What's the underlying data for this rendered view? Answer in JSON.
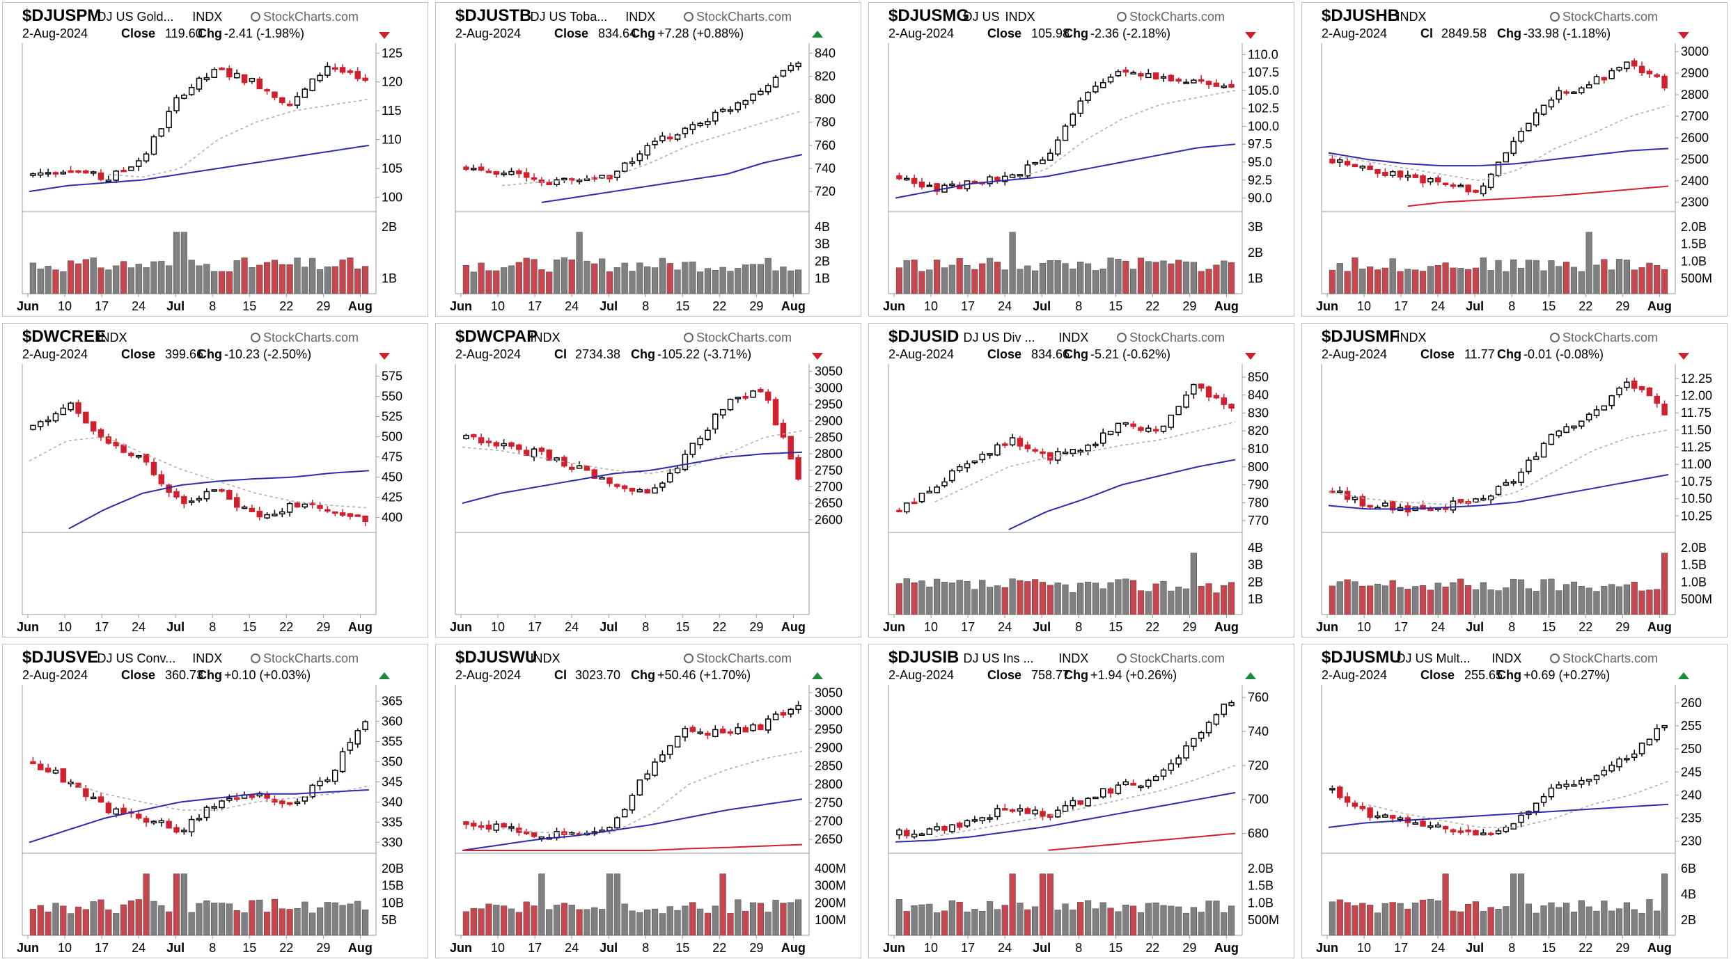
{
  "source_label": "StockCharts.com",
  "x_tick_labels": [
    "Jun",
    "10",
    "17",
    "24",
    "Jul",
    "8",
    "15",
    "22",
    "29",
    "Aug"
  ],
  "colors": {
    "up": "#000000",
    "down": "#d0202e",
    "vol_up": "#808080",
    "vol_down": "#c8464e",
    "sma_fast": "#b0b0b0",
    "sma_mid": "#2c2ca8",
    "sma_slow": "#d0202e"
  },
  "chart_data": [
    {
      "type": "candlestick",
      "symbol": "$DJUSPM",
      "description": "DJ US Gold...",
      "exchange": "INDX",
      "date": "2-Aug-2024",
      "close_label": "Close",
      "close": "119.60",
      "chg": "-2.41 (-1.98%)",
      "direction": "down",
      "ylim": [
        98,
        126
      ],
      "price_ticks": [
        "125",
        "120",
        "115",
        "110",
        "105",
        "100"
      ],
      "vol_ticks": [
        "2B",
        "1B"
      ],
      "vol_max": 2.6,
      "levels": [
        104,
        105,
        103,
        107,
        118,
        122,
        120,
        116,
        123,
        119.6
      ],
      "sma_fast": [
        null,
        null,
        104,
        103.5,
        105,
        110,
        113,
        115,
        116,
        117
      ],
      "sma_mid": [
        101,
        102,
        102.5,
        103,
        104,
        105,
        106,
        107,
        108,
        109
      ],
      "vol_spikes": [
        4
      ],
      "price_rows": 3
    },
    {
      "type": "candlestick",
      "symbol": "$DJUSTB",
      "description": "DJ US Toba...",
      "exchange": "INDX",
      "date": "2-Aug-2024",
      "close_label": "Close",
      "close": "834.64",
      "chg": "+7.28 (+0.88%)",
      "direction": "up",
      "ylim": [
        705,
        845
      ],
      "price_ticks": [
        "840",
        "820",
        "800",
        "780",
        "760",
        "740",
        "720"
      ],
      "vol_ticks": [
        "4B",
        "3B",
        "2B",
        "1B"
      ],
      "vol_max": 4.2,
      "levels": [
        740,
        738,
        728,
        730,
        735,
        760,
        775,
        790,
        810,
        834.6
      ],
      "sma_fast": [
        null,
        725,
        728,
        730,
        733,
        745,
        760,
        770,
        780,
        790
      ],
      "sma_mid": [
        null,
        null,
        710,
        715,
        720,
        725,
        730,
        735,
        745,
        752
      ],
      "vol_spikes": [
        3
      ],
      "price_rows": 3
    },
    {
      "type": "candlestick",
      "symbol": "$DJUSMG",
      "description": "DJ US",
      "exchange": "INDX",
      "date": "2-Aug-2024",
      "close_label": "Close",
      "close": "105.98",
      "chg": "-2.36 (-2.18%)",
      "direction": "down",
      "ylim": [
        88.5,
        111
      ],
      "price_ticks": [
        "110.0",
        "107.5",
        "105.0",
        "102.5",
        "100.0",
        "97.5",
        "95.0",
        "92.5",
        "90.0"
      ],
      "vol_ticks": [
        "3B",
        "2B",
        "1B"
      ],
      "vol_max": 3.6,
      "levels": [
        93,
        91,
        92,
        93,
        96,
        104,
        108,
        107,
        106,
        106
      ],
      "sma_fast": [
        null,
        null,
        92,
        92.5,
        94,
        98,
        101,
        103,
        104,
        105
      ],
      "sma_mid": [
        90,
        91,
        92,
        92.5,
        93,
        94,
        95,
        96,
        97,
        97.5
      ],
      "vol_spikes": [
        3
      ],
      "price_rows": 3
    },
    {
      "type": "candlestick",
      "symbol": "$DJUSHB",
      "description": "",
      "exchange": "INDX",
      "date": "2-Aug-2024",
      "close_label": "Cl",
      "close": "2849.58",
      "chg": "-33.98 (-1.18%)",
      "direction": "down",
      "ylim": [
        2270,
        3020
      ],
      "price_ticks": [
        "3000",
        "2900",
        "2800",
        "2700",
        "2600",
        "2500",
        "2400",
        "2300"
      ],
      "vol_ticks": [
        "2.0B",
        "1.5B",
        "1.0B",
        "500M"
      ],
      "vol_max": 2.1,
      "levels": [
        2500,
        2450,
        2420,
        2380,
        2350,
        2600,
        2800,
        2850,
        2950,
        2849.6
      ],
      "sma_fast": [
        2520,
        2490,
        2460,
        2430,
        2400,
        2450,
        2550,
        2620,
        2700,
        2750
      ],
      "sma_mid": [
        2530,
        2500,
        2480,
        2470,
        2470,
        2480,
        2500,
        2520,
        2540,
        2550
      ],
      "sma_slow": [
        null,
        null,
        2280,
        2300,
        2310,
        2320,
        2330,
        2345,
        2360,
        2375
      ],
      "vol_spikes": [
        7
      ],
      "price_rows": 3
    },
    {
      "type": "candlestick",
      "symbol": "$DWCREE",
      "description": "",
      "exchange": "INDX",
      "date": "2-Aug-2024",
      "close_label": "Close",
      "close": "399.66",
      "chg": "-10.23 (-2.50%)",
      "direction": "down",
      "ylim": [
        385,
        585
      ],
      "price_ticks": [
        "575",
        "550",
        "525",
        "500",
        "475",
        "450",
        "425",
        "400"
      ],
      "vol_ticks": [],
      "vol_max": 0,
      "levels": [
        510,
        540,
        490,
        470,
        420,
        435,
        400,
        415,
        410,
        399.7
      ],
      "sma_fast": [
        470,
        495,
        500,
        480,
        460,
        445,
        430,
        420,
        415,
        412
      ],
      "sma_mid": [
        null,
        385,
        410,
        430,
        440,
        445,
        448,
        450,
        455,
        458
      ],
      "vol_spikes": [],
      "price_rows": 3
    },
    {
      "type": "candlestick",
      "symbol": "$DWCPAP",
      "description": "",
      "exchange": "INDX",
      "date": "2-Aug-2024",
      "close_label": "Cl",
      "close": "2734.38",
      "chg": "-105.22 (-3.71%)",
      "direction": "down",
      "ylim": [
        2570,
        3060
      ],
      "price_ticks": [
        "3050",
        "3000",
        "2950",
        "2900",
        "2850",
        "2800",
        "2750",
        "2700",
        "2650",
        "2600"
      ],
      "vol_ticks": [],
      "vol_max": 0,
      "levels": [
        2850,
        2820,
        2800,
        2760,
        2700,
        2680,
        2800,
        2950,
        3000,
        2734.4
      ],
      "sma_fast": [
        2820,
        2810,
        2790,
        2770,
        2750,
        2740,
        2760,
        2800,
        2850,
        2870
      ],
      "sma_mid": [
        2650,
        2680,
        2700,
        2720,
        2740,
        2750,
        2770,
        2790,
        2800,
        2805
      ],
      "vol_spikes": [],
      "price_rows": 3
    },
    {
      "type": "candlestick",
      "symbol": "$DJUSID",
      "description": "DJ US Div ...",
      "exchange": "INDX",
      "date": "2-Aug-2024",
      "close_label": "Close",
      "close": "834.66",
      "chg": "-5.21 (-0.62%)",
      "direction": "down",
      "ylim": [
        765,
        855
      ],
      "price_ticks": [
        "850",
        "840",
        "830",
        "820",
        "810",
        "800",
        "790",
        "780",
        "770"
      ],
      "vol_ticks": [
        "4B",
        "3B",
        "2B",
        "1B"
      ],
      "vol_max": 4.3,
      "levels": [
        775,
        790,
        805,
        815,
        805,
        810,
        825,
        820,
        845,
        834.7
      ],
      "sma_fast": [
        null,
        780,
        790,
        800,
        805,
        808,
        812,
        815,
        820,
        825
      ],
      "sma_mid": [
        null,
        null,
        null,
        765,
        775,
        782,
        790,
        795,
        800,
        804
      ],
      "vol_spikes": [
        8
      ],
      "price_rows": 3
    },
    {
      "type": "candlestick",
      "symbol": "$DJUSMF",
      "description": "",
      "exchange": "INDX",
      "date": "2-Aug-2024",
      "close_label": "Close",
      "close": "11.77",
      "chg": "-0.01 (-0.08%)",
      "direction": "down",
      "ylim": [
        10.05,
        12.4
      ],
      "price_ticks": [
        "12.25",
        "12.00",
        "11.75",
        "11.50",
        "11.25",
        "11.00",
        "10.75",
        "10.50",
        "10.25"
      ],
      "vol_ticks": [
        "2.0B",
        "1.5B",
        "1.0B",
        "500M"
      ],
      "vol_max": 2.1,
      "levels": [
        10.6,
        10.4,
        10.35,
        10.4,
        10.45,
        10.8,
        11.5,
        11.7,
        12.2,
        11.77
      ],
      "sma_fast": [
        10.6,
        10.5,
        10.45,
        10.42,
        10.45,
        10.6,
        10.9,
        11.2,
        11.4,
        11.5
      ],
      "sma_mid": [
        10.4,
        10.35,
        10.35,
        10.37,
        10.4,
        10.45,
        10.55,
        10.65,
        10.75,
        10.85
      ],
      "vol_spikes": [
        9
      ],
      "price_rows": 3
    },
    {
      "type": "candlestick",
      "symbol": "$DJUSVE",
      "description": "DJ US Conv...",
      "exchange": "INDX",
      "date": "2-Aug-2024",
      "close_label": "Close",
      "close": "360.73",
      "chg": "+0.10 (+0.03%)",
      "direction": "up",
      "ylim": [
        328,
        368
      ],
      "price_ticks": [
        "365",
        "360",
        "355",
        "350",
        "345",
        "340",
        "335",
        "330"
      ],
      "vol_ticks": [
        "20B",
        "15B",
        "10B",
        "5B"
      ],
      "vol_max": 21,
      "levels": [
        350,
        345,
        338,
        336,
        333,
        340,
        342,
        340,
        346,
        360.7
      ],
      "sma_fast": [
        null,
        345,
        342,
        340,
        338,
        338,
        340,
        341,
        342,
        344
      ],
      "sma_mid": [
        330,
        333,
        336,
        338,
        340,
        341,
        342,
        342,
        342.5,
        343
      ],
      "vol_spikes": [
        3,
        4
      ],
      "price_rows": 3
    },
    {
      "type": "candlestick",
      "symbol": "$DJUSWU",
      "description": "",
      "exchange": "INDX",
      "date": "2-Aug-2024",
      "close_label": "Cl",
      "close": "3023.70",
      "chg": "+50.46 (+1.70%)",
      "direction": "up",
      "ylim": [
        2620,
        3060
      ],
      "price_ticks": [
        "3050",
        "3000",
        "2950",
        "2900",
        "2850",
        "2800",
        "2750",
        "2700",
        "2650"
      ],
      "vol_ticks": [
        "400M",
        "300M",
        "200M",
        "100M"
      ],
      "vol_max": 420,
      "levels": [
        2700,
        2680,
        2660,
        2670,
        2690,
        2850,
        2950,
        2940,
        2960,
        3023.7
      ],
      "sma_fast": [
        null,
        2680,
        2670,
        2665,
        2670,
        2720,
        2800,
        2840,
        2870,
        2890
      ],
      "sma_mid": [
        2620,
        2635,
        2650,
        2660,
        2675,
        2690,
        2710,
        2730,
        2745,
        2760
      ],
      "sma_slow": [
        2620,
        2620,
        2620,
        2620,
        2620,
        2620,
        2625,
        2628,
        2632,
        2636
      ],
      "vol_spikes": [
        2,
        4,
        7
      ],
      "price_rows": 3
    },
    {
      "type": "candlestick",
      "symbol": "$DJUSIB",
      "description": "DJ US Ins ...",
      "exchange": "INDX",
      "date": "2-Aug-2024",
      "close_label": "Close",
      "close": "758.77",
      "chg": "+1.94 (+0.26%)",
      "direction": "up",
      "ylim": [
        670,
        765
      ],
      "price_ticks": [
        "760",
        "740",
        "720",
        "700",
        "680"
      ],
      "vol_ticks": [
        "2.0B",
        "1.5B",
        "1.0B",
        "500M"
      ],
      "vol_max": 2.1,
      "levels": [
        680,
        682,
        688,
        695,
        690,
        700,
        708,
        712,
        735,
        758.8
      ],
      "sma_fast": [
        null,
        678,
        682,
        686,
        690,
        695,
        700,
        705,
        712,
        720
      ],
      "sma_mid": [
        675,
        676,
        678,
        681,
        684,
        688,
        692,
        696,
        700,
        704
      ],
      "sma_slow": [
        null,
        null,
        null,
        null,
        670,
        672,
        674,
        676,
        678,
        680
      ],
      "vol_spikes": [
        3,
        4
      ],
      "price_rows": 3
    },
    {
      "type": "candlestick",
      "symbol": "$DJUSMU",
      "description": "DJ US Mult...",
      "exchange": "INDX",
      "date": "2-Aug-2024",
      "close_label": "Close",
      "close": "255.65",
      "chg": "+0.69 (+0.27%)",
      "direction": "up",
      "ylim": [
        228,
        263
      ],
      "price_ticks": [
        "260",
        "255",
        "250",
        "245",
        "240",
        "235",
        "230"
      ],
      "vol_ticks": [
        "6B",
        "4B",
        "2B"
      ],
      "vol_max": 6.2,
      "levels": [
        241,
        236,
        234,
        233,
        231,
        235,
        242,
        244,
        248,
        255.7
      ],
      "sma_fast": [
        null,
        238,
        236,
        234.5,
        233,
        233,
        235,
        238,
        240,
        243
      ],
      "sma_mid": [
        233,
        234,
        234.5,
        235,
        235.5,
        236,
        236.5,
        237,
        237.5,
        238
      ],
      "vol_spikes": [
        3,
        5,
        9
      ],
      "price_rows": 3
    }
  ]
}
